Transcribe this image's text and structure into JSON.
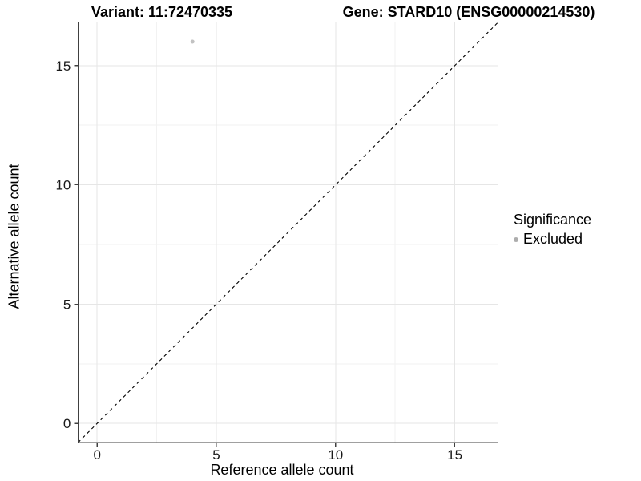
{
  "chart_data": {
    "type": "scatter",
    "titles": {
      "left": "Variant: 11:72470335",
      "right": "Gene: STARD10 (ENSG00000214530)"
    },
    "xlabel": "Reference allele count",
    "ylabel": "Alternative allele count",
    "xlim": [
      -0.8,
      16.8
    ],
    "ylim": [
      -0.8,
      16.8
    ],
    "x_ticks": [
      0,
      5,
      10,
      15
    ],
    "y_ticks": [
      0,
      5,
      10,
      15
    ],
    "x_minor_ticks": [
      2.5,
      7.5,
      12.5
    ],
    "y_minor_ticks": [
      2.5,
      7.5,
      12.5
    ],
    "grid": {
      "major": true,
      "minor": true
    },
    "series": [
      {
        "name": "Excluded",
        "color": "#c2c2c2",
        "point_radius": 2.5,
        "points": [
          {
            "x": 4,
            "y": 16
          }
        ]
      }
    ],
    "reference_line": {
      "slope": 1,
      "intercept": 0,
      "linetype": "dashed",
      "color": "#000000"
    },
    "legend": {
      "title": "Significance",
      "position": "right",
      "entries": [
        {
          "label": "Excluded",
          "color": "#adadad"
        }
      ]
    },
    "colors": {
      "axis_line": "#404040",
      "tick_text": "#1a1a1a",
      "grid_major": "#e6e6e6",
      "grid_minor": "#f2f2f2",
      "background": "#ffffff"
    }
  }
}
